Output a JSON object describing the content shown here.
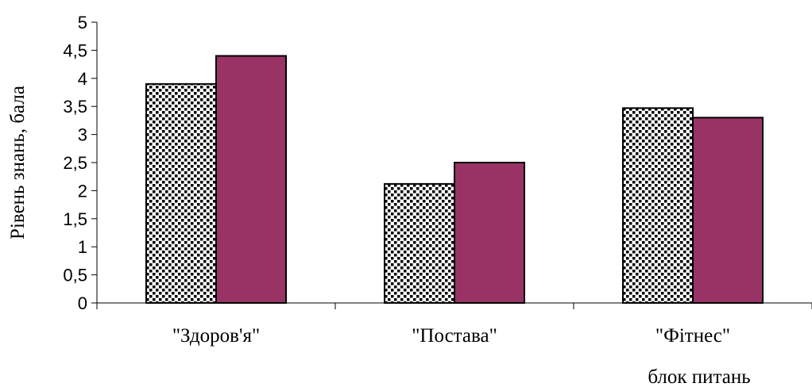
{
  "chart_data": {
    "type": "bar",
    "title": "",
    "xlabel": "блок питань",
    "ylabel": "Рівень знань, бала",
    "categories": [
      "\"Здоров'я\"",
      "\"Постава\"",
      "\"Фітнес\""
    ],
    "series": [
      {
        "values": [
          3.9,
          2.12,
          3.47
        ],
        "fill": "dotted-pattern",
        "color": "#000000"
      },
      {
        "values": [
          4.4,
          2.5,
          3.3
        ],
        "fill": "solid",
        "color": "#993366"
      }
    ],
    "ylim": [
      0,
      5
    ],
    "yticks": [
      "0",
      "0,5",
      "1",
      "1,5",
      "2",
      "2,5",
      "3",
      "3,5",
      "4",
      "4,5",
      "5"
    ],
    "grid": false,
    "legend": "none"
  }
}
